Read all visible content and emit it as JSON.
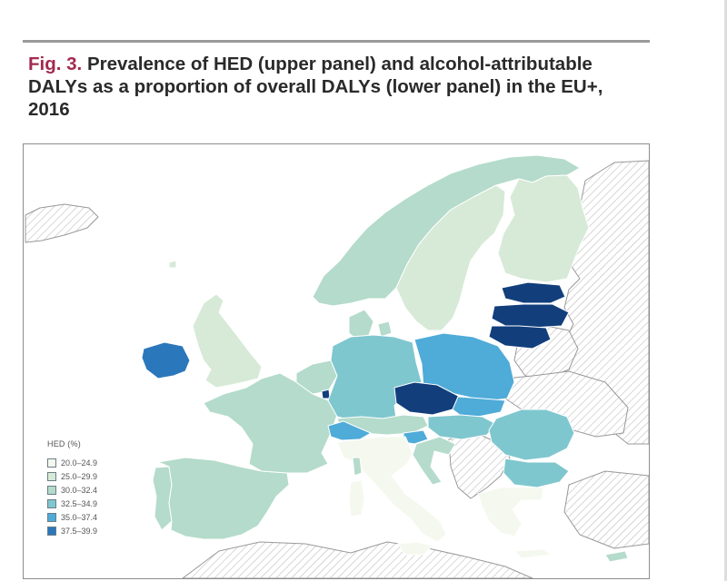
{
  "figure": {
    "fig_label": "Fig. 3.",
    "title": "Prevalence of HED (upper panel) and alcohol-attributable DALYs as a proportion of overall DALYs (lower panel) in the EU+, 2016"
  },
  "legend": {
    "title": "HED (%)",
    "items": [
      {
        "label": "20.0–24.9",
        "color": "#f4f8ee"
      },
      {
        "label": "25.0–29.9",
        "color": "#d6ead7"
      },
      {
        "label": "30.0–32.4",
        "color": "#b4dbcb"
      },
      {
        "label": "32.5–34.9",
        "color": "#7fc7cf"
      },
      {
        "label": "35.0–37.4",
        "color": "#4fabd8"
      },
      {
        "label": "37.5–39.9",
        "color": "#2b77bb"
      }
    ]
  },
  "colors": {
    "darkest": "#123f7c",
    "no_data_hatch": "#b8b8b8",
    "title_accent": "#a3294f"
  }
}
